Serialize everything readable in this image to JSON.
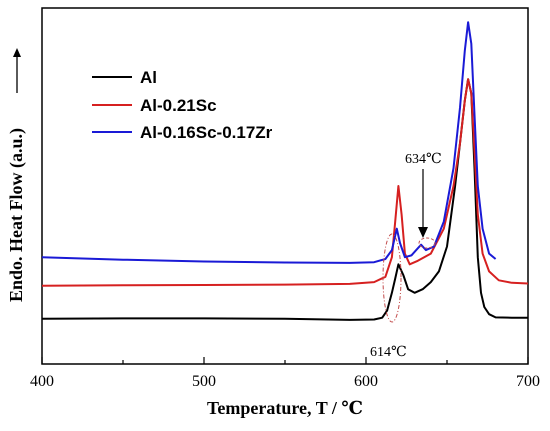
{
  "chart_data": {
    "type": "line",
    "title": "",
    "xlabel": "Temperature, T / ℃",
    "ylabel": "Endo. Heat Flow (a.u.)",
    "xlim": [
      400,
      700
    ],
    "ylim": [
      0,
      1
    ],
    "x_ticks": [
      "400",
      "500",
      "600",
      "700"
    ],
    "y_ticks": [],
    "grid": false,
    "legend_position": "top-left",
    "series": [
      {
        "name": "Al",
        "color": "#000000",
        "points": [
          [
            400,
            0.127
          ],
          [
            450,
            0.128
          ],
          [
            500,
            0.128
          ],
          [
            550,
            0.127
          ],
          [
            590,
            0.124
          ],
          [
            605,
            0.125
          ],
          [
            610,
            0.13
          ],
          [
            613,
            0.15
          ],
          [
            616,
            0.2
          ],
          [
            618,
            0.24
          ],
          [
            620,
            0.28
          ],
          [
            623,
            0.25
          ],
          [
            626,
            0.21
          ],
          [
            630,
            0.2
          ],
          [
            635,
            0.21
          ],
          [
            640,
            0.23
          ],
          [
            645,
            0.26
          ],
          [
            650,
            0.33
          ],
          [
            655,
            0.5
          ],
          [
            658,
            0.62
          ],
          [
            661,
            0.74
          ],
          [
            663,
            0.8
          ],
          [
            665,
            0.76
          ],
          [
            667,
            0.55
          ],
          [
            669,
            0.3
          ],
          [
            671,
            0.2
          ],
          [
            673,
            0.16
          ],
          [
            676,
            0.14
          ],
          [
            680,
            0.131
          ],
          [
            690,
            0.13
          ],
          [
            700,
            0.13
          ]
        ]
      },
      {
        "name": "Al-0.21Sc",
        "color": "#d62020",
        "points": [
          [
            400,
            0.22
          ],
          [
            450,
            0.221
          ],
          [
            500,
            0.222
          ],
          [
            550,
            0.223
          ],
          [
            590,
            0.225
          ],
          [
            605,
            0.23
          ],
          [
            612,
            0.245
          ],
          [
            616,
            0.3
          ],
          [
            618,
            0.4
          ],
          [
            620,
            0.5
          ],
          [
            622,
            0.42
          ],
          [
            624,
            0.31
          ],
          [
            627,
            0.28
          ],
          [
            632,
            0.29
          ],
          [
            640,
            0.31
          ],
          [
            648,
            0.38
          ],
          [
            654,
            0.5
          ],
          [
            658,
            0.62
          ],
          [
            661,
            0.74
          ],
          [
            663,
            0.8
          ],
          [
            665,
            0.76
          ],
          [
            667,
            0.6
          ],
          [
            669,
            0.42
          ],
          [
            672,
            0.31
          ],
          [
            676,
            0.26
          ],
          [
            682,
            0.235
          ],
          [
            690,
            0.228
          ],
          [
            700,
            0.226
          ]
        ]
      },
      {
        "name": "Al-0.16Sc-0.17Zr",
        "color": "#1a1ad6",
        "points": [
          [
            400,
            0.3
          ],
          [
            420,
            0.297
          ],
          [
            450,
            0.293
          ],
          [
            500,
            0.288
          ],
          [
            550,
            0.285
          ],
          [
            590,
            0.284
          ],
          [
            605,
            0.286
          ],
          [
            612,
            0.295
          ],
          [
            616,
            0.32
          ],
          [
            619,
            0.38
          ],
          [
            621,
            0.34
          ],
          [
            624,
            0.3
          ],
          [
            628,
            0.305
          ],
          [
            631,
            0.32
          ],
          [
            634,
            0.335
          ],
          [
            637,
            0.32
          ],
          [
            642,
            0.33
          ],
          [
            648,
            0.4
          ],
          [
            654,
            0.55
          ],
          [
            658,
            0.72
          ],
          [
            661,
            0.88
          ],
          [
            663,
            0.96
          ],
          [
            665,
            0.9
          ],
          [
            667,
            0.7
          ],
          [
            669,
            0.5
          ],
          [
            672,
            0.38
          ],
          [
            676,
            0.31
          ],
          [
            680,
            0.295
          ]
        ]
      }
    ],
    "annotations": [
      {
        "label": "614℃",
        "x": 614
      },
      {
        "label": "634℃",
        "x": 634
      }
    ]
  }
}
